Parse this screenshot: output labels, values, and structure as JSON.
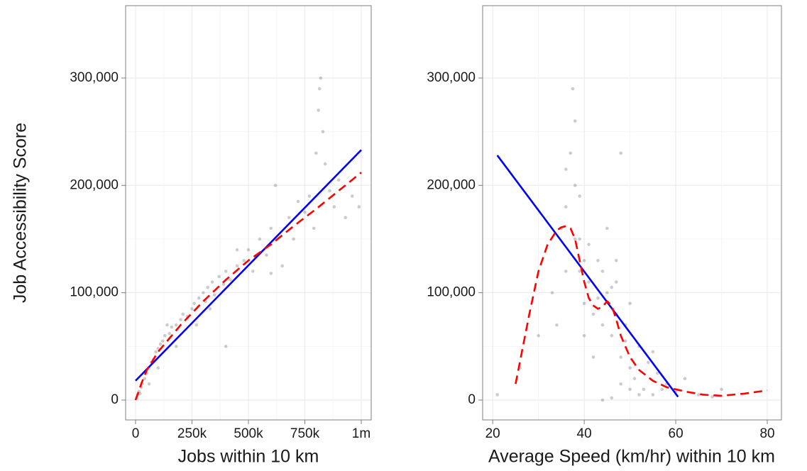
{
  "chart_data": [
    {
      "type": "scatter",
      "xlabel": "Jobs within 10 km",
      "ylabel": "Job Accessibility Score",
      "xlim": [
        -44000,
        1044000
      ],
      "ylim": [
        -18500,
        367400
      ],
      "xticks": [
        0,
        {
          "value": 250000,
          "label": "250k"
        },
        {
          "value": 500000,
          "label": "500k"
        },
        {
          "value": 750000,
          "label": "750k"
        },
        {
          "value": 1000000,
          "label": "1m"
        }
      ],
      "yticks": [
        0,
        {
          "value": 100000,
          "label": "100,000"
        },
        {
          "value": 200000,
          "label": "200,000"
        },
        {
          "value": 300000,
          "label": "300,000"
        }
      ],
      "grid": true,
      "minor_grid": true,
      "series": [
        {
          "style": "points",
          "color": "#000000",
          "alpha": 0.2,
          "x": [
            5000,
            10000,
            15000,
            20000,
            25000,
            30000,
            40000,
            50000,
            60000,
            70000,
            80000,
            90000,
            100000,
            110000,
            120000,
            130000,
            150000,
            160000,
            180000,
            200000,
            210000,
            230000,
            250000,
            260000,
            280000,
            300000,
            310000,
            320000,
            340000,
            350000,
            370000,
            390000,
            400000,
            420000,
            450000,
            480000,
            500000,
            520000,
            550000,
            580000,
            600000,
            620000,
            650000,
            680000,
            700000,
            720000,
            750000,
            770000,
            790000,
            800000,
            810000,
            815000,
            820000,
            830000,
            840000,
            860000,
            880000,
            900000,
            930000,
            960000,
            990000,
            270000,
            330000,
            180000,
            140000,
            60000,
            100000,
            400000,
            450000,
            600000
          ],
          "y": [
            2000,
            5000,
            8000,
            6000,
            12000,
            15000,
            20000,
            25000,
            30000,
            35000,
            38000,
            45000,
            48000,
            52000,
            55000,
            60000,
            62000,
            68000,
            70000,
            75000,
            80000,
            78000,
            85000,
            90000,
            95000,
            100000,
            92000,
            105000,
            110000,
            98000,
            115000,
            108000,
            120000,
            112000,
            125000,
            130000,
            140000,
            120000,
            150000,
            135000,
            160000,
            200000,
            125000,
            170000,
            150000,
            185000,
            175000,
            190000,
            160000,
            230000,
            270000,
            290000,
            300000,
            250000,
            220000,
            195000,
            180000,
            205000,
            170000,
            190000,
            180000,
            70000,
            85000,
            50000,
            70000,
            15000,
            30000,
            50000,
            140000,
            118000
          ]
        },
        {
          "style": "line",
          "color": "#0000ff",
          "dashed": false,
          "x": [
            0,
            1000000
          ],
          "y": [
            18000,
            233000
          ]
        },
        {
          "style": "line",
          "color": "#ff0000",
          "dashed": true,
          "x": [
            0,
            25000,
            50000,
            100000,
            200000,
            300000,
            400000,
            500000,
            600000,
            700000,
            800000,
            900000,
            1000000
          ],
          "y": [
            0,
            15000,
            28000,
            45000,
            70000,
            92000,
            112000,
            130000,
            145000,
            162000,
            178000,
            195000,
            212000
          ]
        }
      ]
    },
    {
      "type": "scatter",
      "xlabel": "Average Speed (km/hr) within 10 km",
      "xlim": [
        17.8,
        83.1
      ],
      "ylim": [
        -18500,
        367400
      ],
      "xticks": [
        20,
        40,
        60,
        80
      ],
      "yticks": [
        0,
        {
          "value": 100000,
          "label": "100,000"
        },
        {
          "value": 200000,
          "label": "200,000"
        },
        {
          "value": 300000,
          "label": "300,000"
        }
      ],
      "grid": true,
      "minor_grid": true,
      "series": [
        {
          "style": "points",
          "color": "#000000",
          "alpha": 0.2,
          "x": [
            21,
            26,
            30,
            33,
            35,
            36,
            37,
            37.5,
            38,
            38,
            39,
            39,
            40,
            40,
            41,
            42,
            43,
            44,
            44,
            45,
            45,
            46,
            46,
            47,
            47,
            48,
            48,
            49,
            50,
            50,
            51,
            52,
            53,
            54,
            55,
            56,
            58,
            60,
            62,
            65,
            68,
            70,
            44,
            46,
            42,
            48,
            50,
            52,
            36,
            38,
            34,
            40,
            43,
            47,
            49,
            41,
            39,
            36,
            55,
            57
          ],
          "y": [
            5000,
            30000,
            60000,
            100000,
            160000,
            180000,
            230000,
            290000,
            260000,
            200000,
            150000,
            120000,
            130000,
            90000,
            110000,
            80000,
            95000,
            70000,
            120000,
            160000,
            100000,
            105000,
            60000,
            130000,
            80000,
            230000,
            40000,
            70000,
            30000,
            90000,
            20000,
            50000,
            10000,
            35000,
            5000,
            25000,
            15000,
            8000,
            20000,
            5000,
            3000,
            10000,
            0,
            2000,
            40000,
            15000,
            10000,
            5000,
            120000,
            150000,
            70000,
            60000,
            130000,
            110000,
            55000,
            145000,
            190000,
            215000,
            45000,
            10000
          ]
        },
        {
          "style": "line",
          "color": "#0000ff",
          "dashed": false,
          "x": [
            21,
            60.5
          ],
          "y": [
            228000,
            3000
          ]
        },
        {
          "style": "line",
          "color": "#ff0000",
          "dashed": true,
          "x": [
            25,
            28,
            30,
            32,
            34,
            35,
            36,
            37,
            38,
            39,
            40,
            41,
            42,
            43,
            44,
            45,
            46,
            47,
            48,
            50,
            52,
            55,
            58,
            62,
            66,
            70,
            75,
            80
          ],
          "y": [
            15000,
            80000,
            120000,
            145000,
            158000,
            161000,
            162000,
            160000,
            150000,
            130000,
            110000,
            95000,
            88000,
            85000,
            87000,
            92000,
            88000,
            75000,
            60000,
            40000,
            28000,
            18000,
            12000,
            8000,
            5000,
            4000,
            6000,
            9000
          ]
        }
      ]
    }
  ]
}
